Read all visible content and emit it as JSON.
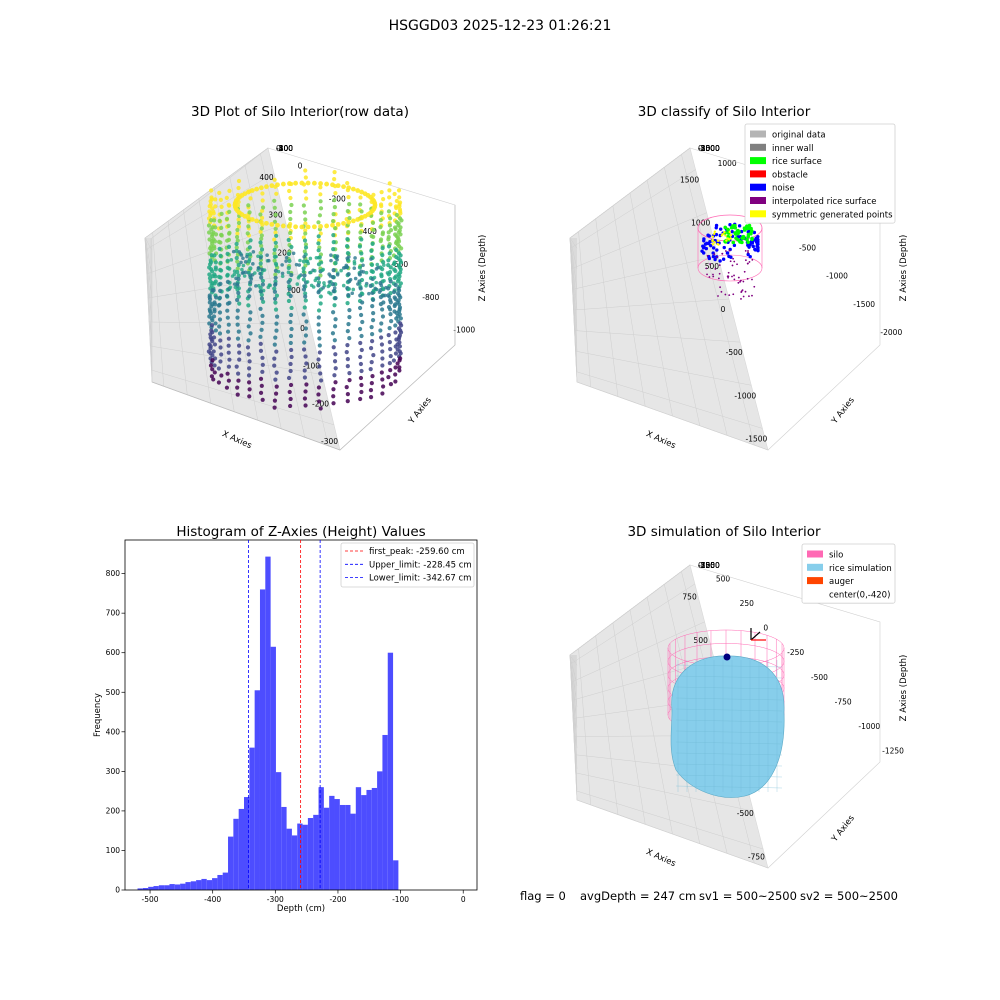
{
  "suptitle": "HSGGD03 2025-12-23 01:26:21",
  "footer": {
    "flag": "flag = 0",
    "avg": "avgDepth = 247 cm",
    "sv1": "sv1 = 500~2500",
    "sv2": "sv2 = 500~2500"
  },
  "chart_data": [
    {
      "type": "scatter",
      "title": "3D Plot of Silo Interior(row data)",
      "xlabel": "X Axies",
      "ylabel": "Y Axies",
      "zlabel": "Z Axies (Depth)",
      "xticks": [
        "-300",
        "-200",
        "-100",
        "0",
        "100",
        "200",
        "300",
        "400"
      ],
      "yticks": [
        "0",
        "-200",
        "-400",
        "-600",
        "-800",
        "-1000"
      ],
      "zticks": [
        "0",
        "-100",
        "-200",
        "-300",
        "-400",
        "-500"
      ],
      "colormap": [
        "#fde725",
        "#7ad151",
        "#22a884",
        "#2a788e",
        "#414487",
        "#440154"
      ]
    },
    {
      "type": "scatter",
      "title": "3D classify of Silo Interior",
      "xlabel": "X Axies",
      "ylabel": "Y Axies",
      "zlabel": "Z Axies (Depth)",
      "xticks": [
        "-1500",
        "-1000",
        "-500",
        "0",
        "500",
        "1000",
        "1500"
      ],
      "yticks": [
        "1000",
        "500",
        "0",
        "-500",
        "-1000",
        "-1500",
        "-2000"
      ],
      "zticks": [
        "0",
        "-500",
        "-1000",
        "-1500",
        "-2000",
        "-2500",
        "-3000"
      ],
      "legend": [
        {
          "label": "original data",
          "color": "#b4b4b4"
        },
        {
          "label": "inner wall",
          "color": "#808080"
        },
        {
          "label": "rice surface",
          "color": "#00ff00"
        },
        {
          "label": "obstacle",
          "color": "#ff0000"
        },
        {
          "label": "noise",
          "color": "#0000ff"
        },
        {
          "label": "interpolated rice surface",
          "color": "#800080"
        },
        {
          "label": "symmetric generated points",
          "color": "#ffff00"
        }
      ],
      "legend_position": "top-right"
    },
    {
      "type": "bar",
      "title": "Histogram of Z-Axies (Height) Values",
      "xlabel": "Depth (cm)",
      "ylabel": "Frequency",
      "bar_color": "#4d4dff",
      "xlim": [
        -540,
        22
      ],
      "ylim": [
        0,
        885
      ],
      "xticks": [
        -500,
        -400,
        -300,
        -200,
        -100,
        0
      ],
      "yticks": [
        0,
        100,
        200,
        300,
        400,
        500,
        600,
        700,
        800
      ],
      "bin_start": -520,
      "bin_width": 8.5,
      "values": [
        4,
        5,
        8,
        10,
        12,
        12,
        15,
        14,
        16,
        20,
        22,
        25,
        28,
        25,
        30,
        38,
        44,
        135,
        180,
        205,
        235,
        360,
        505,
        760,
        843,
        615,
        298,
        210,
        155,
        138,
        168,
        165,
        182,
        190,
        260,
        208,
        238,
        230,
        215,
        215,
        193,
        260,
        240,
        253,
        258,
        300,
        392,
        600,
        75
      ],
      "vlines": [
        {
          "x": -259.6,
          "color": "#ff0000",
          "label": "first_peak: -259.60 cm"
        },
        {
          "x": -228.45,
          "color": "#0000ff",
          "label": "Upper_limit: -228.45 cm"
        },
        {
          "x": -342.67,
          "color": "#0000ff",
          "label": "Lower_limit: -342.67 cm"
        }
      ],
      "legend_position": "top-right"
    },
    {
      "type": "area",
      "title": "3D simulation of Silo Interior",
      "xlabel": "X Axies",
      "ylabel": "Y Axies",
      "zlabel": "Z Axies (Depth)",
      "xticks": [
        "-750",
        "-500",
        "-250",
        "0",
        "250",
        "500",
        "750"
      ],
      "yticks": [
        "500",
        "250",
        "0",
        "-250",
        "-500",
        "-750",
        "-1000",
        "-1250"
      ],
      "zticks": [
        "0",
        "-250",
        "-500",
        "-750",
        "-1000",
        "-1250",
        "-1500"
      ],
      "legend": [
        {
          "label": "silo",
          "color": "#ff69b4"
        },
        {
          "label": "rice simulation",
          "color": "#87ceeb"
        },
        {
          "label": "auger",
          "color": "#ff4500"
        },
        {
          "label": "center(0,-420)",
          "color": ""
        }
      ],
      "legend_position": "top-right"
    }
  ]
}
